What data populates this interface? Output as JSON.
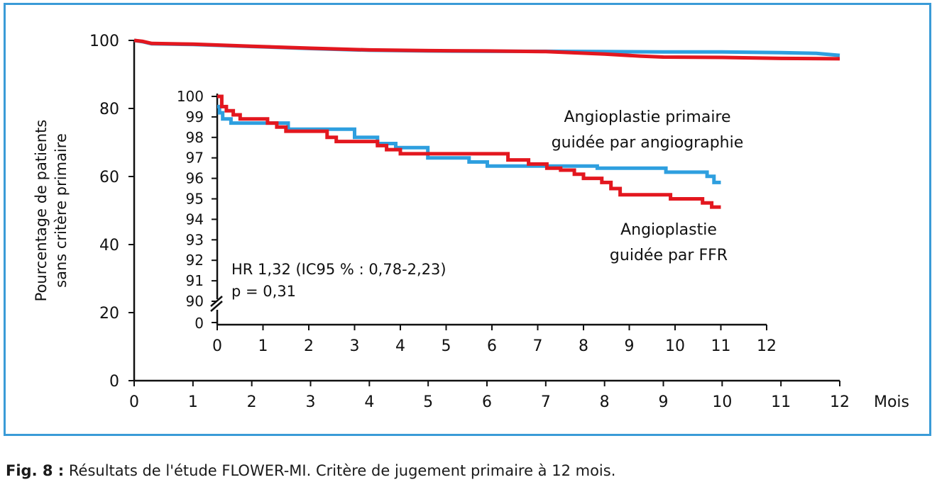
{
  "caption": {
    "label": "Fig. 8 :",
    "text": "Résultats de l'étude FLOWER-MI. Critère de jugement primaire à 12 mois."
  },
  "colors": {
    "frame": "#3a9bd7",
    "angiographie": "#2e9fdf",
    "ffr": "#e3171f",
    "axis": "#111111"
  },
  "chart_data": [
    {
      "type": "line",
      "chart_role": "main",
      "xlabel": "Mois",
      "ylabel": [
        "Pourcentage de patients",
        "sans critère primaire"
      ],
      "xlim": [
        0,
        12
      ],
      "ylim": [
        0,
        100
      ],
      "xticks": [
        0,
        1,
        2,
        3,
        4,
        5,
        6,
        7,
        8,
        9,
        10,
        11,
        12
      ],
      "yticks": [
        0,
        20,
        40,
        60,
        80,
        100
      ],
      "grid": false,
      "series": [
        {
          "key": "angiographie",
          "x": [
            0,
            0.15,
            0.3,
            1,
            2,
            3,
            4,
            5,
            6,
            7,
            8,
            9,
            10,
            11,
            11.6,
            12
          ],
          "y": [
            100,
            99.6,
            99,
            98.8,
            98.2,
            97.6,
            97.1,
            96.9,
            96.8,
            96.8,
            96.7,
            96.6,
            96.6,
            96.4,
            96.2,
            95.6
          ]
        },
        {
          "key": "ffr",
          "x": [
            0,
            0.15,
            0.3,
            1,
            2,
            3,
            4,
            5,
            6,
            7,
            8,
            8.6,
            9,
            10,
            11,
            12
          ],
          "y": [
            100,
            99.7,
            99.1,
            98.9,
            98.3,
            97.7,
            97.2,
            97.0,
            96.9,
            96.7,
            96.0,
            95.4,
            95.1,
            95.0,
            94.7,
            94.6
          ]
        }
      ]
    },
    {
      "type": "line",
      "chart_role": "inset",
      "xlim": [
        0,
        12
      ],
      "ylim": [
        90,
        100
      ],
      "xticks": [
        0,
        1,
        2,
        3,
        4,
        5,
        6,
        7,
        8,
        9,
        10,
        11,
        12
      ],
      "yticks": [
        90,
        91,
        92,
        93,
        94,
        95,
        96,
        97,
        98,
        99,
        100
      ],
      "ytick_break": "0",
      "grid": false,
      "annotations": [
        "HR 1,32 (IC95 % : 0,78-2,23)",
        "p = 0,31"
      ],
      "series": [
        {
          "key": "angiographie",
          "name": [
            "Angioplastie primaire",
            "guidée par angiographie"
          ],
          "steps": [
            [
              0,
              99.5
            ],
            [
              0.05,
              99.2
            ],
            [
              0.12,
              98.9
            ],
            [
              0.3,
              98.7
            ],
            [
              1.0,
              98.7
            ],
            [
              1.3,
              98.7
            ],
            [
              1.55,
              98.4
            ],
            [
              3.0,
              98.0
            ],
            [
              3.5,
              97.7
            ],
            [
              3.9,
              97.5
            ],
            [
              4.6,
              97.0
            ],
            [
              5.0,
              97.0
            ],
            [
              5.5,
              96.8
            ],
            [
              5.9,
              96.6
            ],
            [
              6.5,
              96.6
            ],
            [
              7.0,
              96.6
            ],
            [
              8.3,
              96.5
            ],
            [
              9.8,
              96.3
            ],
            [
              10.5,
              96.3
            ],
            [
              10.7,
              96.1
            ],
            [
              10.85,
              95.8
            ],
            [
              11.0,
              95.8
            ]
          ]
        },
        {
          "key": "ffr",
          "name": [
            "Angioplastie",
            "guidée par FFR"
          ],
          "steps": [
            [
              0,
              100
            ],
            [
              0.1,
              99.5
            ],
            [
              0.2,
              99.3
            ],
            [
              0.35,
              99.1
            ],
            [
              0.5,
              98.9
            ],
            [
              1.0,
              98.9
            ],
            [
              1.1,
              98.7
            ],
            [
              1.3,
              98.5
            ],
            [
              1.5,
              98.3
            ],
            [
              2.3,
              98.3
            ],
            [
              2.4,
              98.0
            ],
            [
              2.6,
              97.8
            ],
            [
              3.5,
              97.6
            ],
            [
              3.7,
              97.4
            ],
            [
              4.0,
              97.2
            ],
            [
              6.2,
              97.2
            ],
            [
              6.35,
              96.9
            ],
            [
              6.8,
              96.7
            ],
            [
              7.2,
              96.5
            ],
            [
              7.5,
              96.4
            ],
            [
              7.8,
              96.2
            ],
            [
              8.0,
              96.0
            ],
            [
              8.4,
              95.8
            ],
            [
              8.6,
              95.5
            ],
            [
              8.8,
              95.2
            ],
            [
              9.5,
              95.2
            ],
            [
              9.9,
              95.0
            ],
            [
              10.6,
              94.8
            ],
            [
              10.8,
              94.6
            ],
            [
              11.0,
              94.6
            ]
          ]
        }
      ]
    }
  ]
}
